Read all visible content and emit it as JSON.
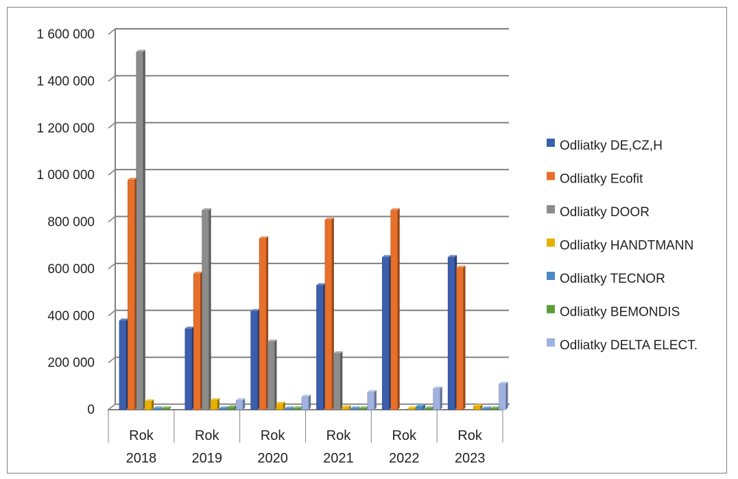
{
  "chart_data": {
    "type": "bar",
    "categories": [
      [
        "Rok",
        "2018"
      ],
      [
        "Rok",
        "2019"
      ],
      [
        "Rok",
        "2020"
      ],
      [
        "Rok",
        "2021"
      ],
      [
        "Rok",
        "2022"
      ],
      [
        "Rok",
        "2023"
      ]
    ],
    "ylim": [
      0,
      1600000
    ],
    "yticks": [
      0,
      200000,
      400000,
      600000,
      800000,
      1000000,
      1200000,
      1400000,
      1600000
    ],
    "ytick_labels": [
      "0",
      "200 000",
      "400 000",
      "600 000",
      "800 000",
      "1 000 000",
      "1 200 000",
      "1 400 000",
      "1 600 000"
    ],
    "grid": true,
    "legend_position": "right",
    "series": [
      {
        "name": "Odliatky DE,CZ,H",
        "color": "#3b5fad",
        "values": [
          380000,
          345000,
          420000,
          530000,
          650000,
          650000
        ]
      },
      {
        "name": "Odliatky Ecofit",
        "color": "#e8702a",
        "values": [
          980000,
          580000,
          730000,
          810000,
          850000,
          605000
        ]
      },
      {
        "name": "Odliatky DOOR",
        "color": "#8c8c8c",
        "values": [
          1525000,
          850000,
          290000,
          240000,
          0,
          0
        ]
      },
      {
        "name": "Odliatky HANDTMANN",
        "color": "#e8b000",
        "values": [
          35000,
          40000,
          25000,
          10000,
          5000,
          15000
        ]
      },
      {
        "name": "Odliatky TECNOR",
        "color": "#4a8ac4",
        "values": [
          5000,
          5000,
          5000,
          5000,
          15000,
          5000
        ]
      },
      {
        "name": "Odliatky BEMONDIS",
        "color": "#5a9e3a",
        "values": [
          5000,
          10000,
          5000,
          5000,
          5000,
          5000
        ]
      },
      {
        "name": "Odliatky DELTA ELECT.",
        "color": "#9fb2e2",
        "values": [
          0,
          40000,
          55000,
          75000,
          90000,
          110000
        ]
      }
    ]
  }
}
